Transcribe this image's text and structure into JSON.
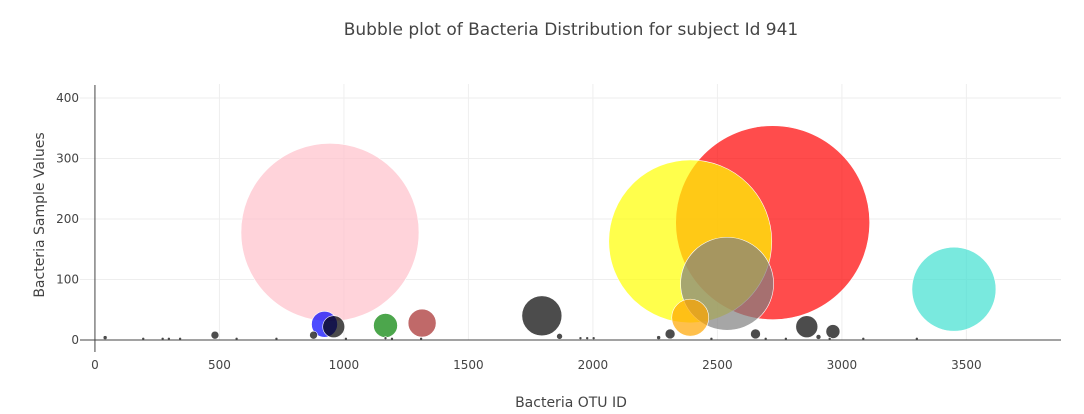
{
  "chart_data": {
    "type": "scatter",
    "title": "Bubble plot of Bacteria Distribution for subject Id 941",
    "xlabel": "Bacteria OTU ID",
    "ylabel": "Bacteria Sample Values",
    "xlim": [
      -60,
      3880
    ],
    "ylim": [
      0,
      410
    ],
    "xticks": [
      0,
      500,
      1000,
      1500,
      2000,
      2500,
      3000,
      3500
    ],
    "yticks": [
      0,
      100,
      200,
      300,
      400
    ],
    "grid": true,
    "legend": "none",
    "series": [
      {
        "values": [
          {
            "x": 2722,
            "y": 194,
            "color": "#ff0000",
            "opacity": 0.7
          },
          {
            "x": 944,
            "y": 178,
            "color": "#ffc0cb",
            "opacity": 0.7
          },
          {
            "x": 2391,
            "y": 163,
            "color": "#ffff00",
            "opacity": 0.7
          },
          {
            "x": 3450,
            "y": 84,
            "color": "#40e0d0",
            "opacity": 0.7
          },
          {
            "x": 2539,
            "y": 93,
            "color": "#808080",
            "opacity": 0.7
          },
          {
            "x": 2391,
            "y": 37,
            "color": "#ffa500",
            "opacity": 0.7
          },
          {
            "x": 1795,
            "y": 40,
            "color": "#000000",
            "opacity": 0.7
          },
          {
            "x": 1314,
            "y": 28,
            "color": "#a52a2a",
            "opacity": 0.7
          },
          {
            "x": 922,
            "y": 26,
            "color": "#0000ff",
            "opacity": 0.7
          },
          {
            "x": 1167,
            "y": 24,
            "color": "#008000",
            "opacity": 0.7
          },
          {
            "x": 959,
            "y": 22,
            "color": "#000000",
            "opacity": 0.7
          },
          {
            "x": 2859,
            "y": 22,
            "color": "#000000",
            "opacity": 0.7
          },
          {
            "x": 2964,
            "y": 14,
            "color": "#000000",
            "opacity": 0.7
          },
          {
            "x": 2310,
            "y": 10,
            "color": "#000000",
            "opacity": 0.7
          },
          {
            "x": 2653,
            "y": 10,
            "color": "#000000",
            "opacity": 0.7
          },
          {
            "x": 482,
            "y": 8,
            "color": "#000000",
            "opacity": 0.7
          },
          {
            "x": 878,
            "y": 8,
            "color": "#000000",
            "opacity": 0.7
          },
          {
            "x": 1866,
            "y": 6,
            "color": "#000000",
            "opacity": 0.7
          },
          {
            "x": 2906,
            "y": 5,
            "color": "#000000",
            "opacity": 0.7
          },
          {
            "x": 41,
            "y": 4,
            "color": "#000000",
            "opacity": 0.7
          },
          {
            "x": 2264,
            "y": 4,
            "color": "#000000",
            "opacity": 0.7
          },
          {
            "x": 1950,
            "y": 3,
            "color": "#000000",
            "opacity": 0.7
          },
          {
            "x": 2003,
            "y": 3,
            "color": "#000000",
            "opacity": 0.7
          },
          {
            "x": 1977,
            "y": 3,
            "color": "#000000",
            "opacity": 0.7
          },
          {
            "x": 1167,
            "y": 3,
            "color": "#000000",
            "opacity": 0.7
          },
          {
            "x": 342,
            "y": 2,
            "color": "#000000",
            "opacity": 0.7
          },
          {
            "x": 272,
            "y": 2,
            "color": "#000000",
            "opacity": 0.7
          },
          {
            "x": 194,
            "y": 2,
            "color": "#000000",
            "opacity": 0.7
          },
          {
            "x": 729,
            "y": 2,
            "color": "#000000",
            "opacity": 0.7
          },
          {
            "x": 297,
            "y": 2,
            "color": "#000000",
            "opacity": 0.7
          },
          {
            "x": 2476,
            "y": 2,
            "color": "#000000",
            "opacity": 0.7
          },
          {
            "x": 3086,
            "y": 2,
            "color": "#000000",
            "opacity": 0.7
          },
          {
            "x": 2694,
            "y": 2,
            "color": "#000000",
            "opacity": 0.7
          },
          {
            "x": 2775,
            "y": 2,
            "color": "#000000",
            "opacity": 0.7
          },
          {
            "x": 1310,
            "y": 2,
            "color": "#000000",
            "opacity": 0.7
          },
          {
            "x": 3301,
            "y": 2,
            "color": "#000000",
            "opacity": 0.7
          },
          {
            "x": 569,
            "y": 2,
            "color": "#000000",
            "opacity": 0.7
          },
          {
            "x": 1008,
            "y": 2,
            "color": "#000000",
            "opacity": 0.7
          },
          {
            "x": 1193,
            "y": 2,
            "color": "#000000",
            "opacity": 0.7
          },
          {
            "x": 2951,
            "y": 2,
            "color": "#000000",
            "opacity": 0.7
          }
        ]
      }
    ]
  }
}
